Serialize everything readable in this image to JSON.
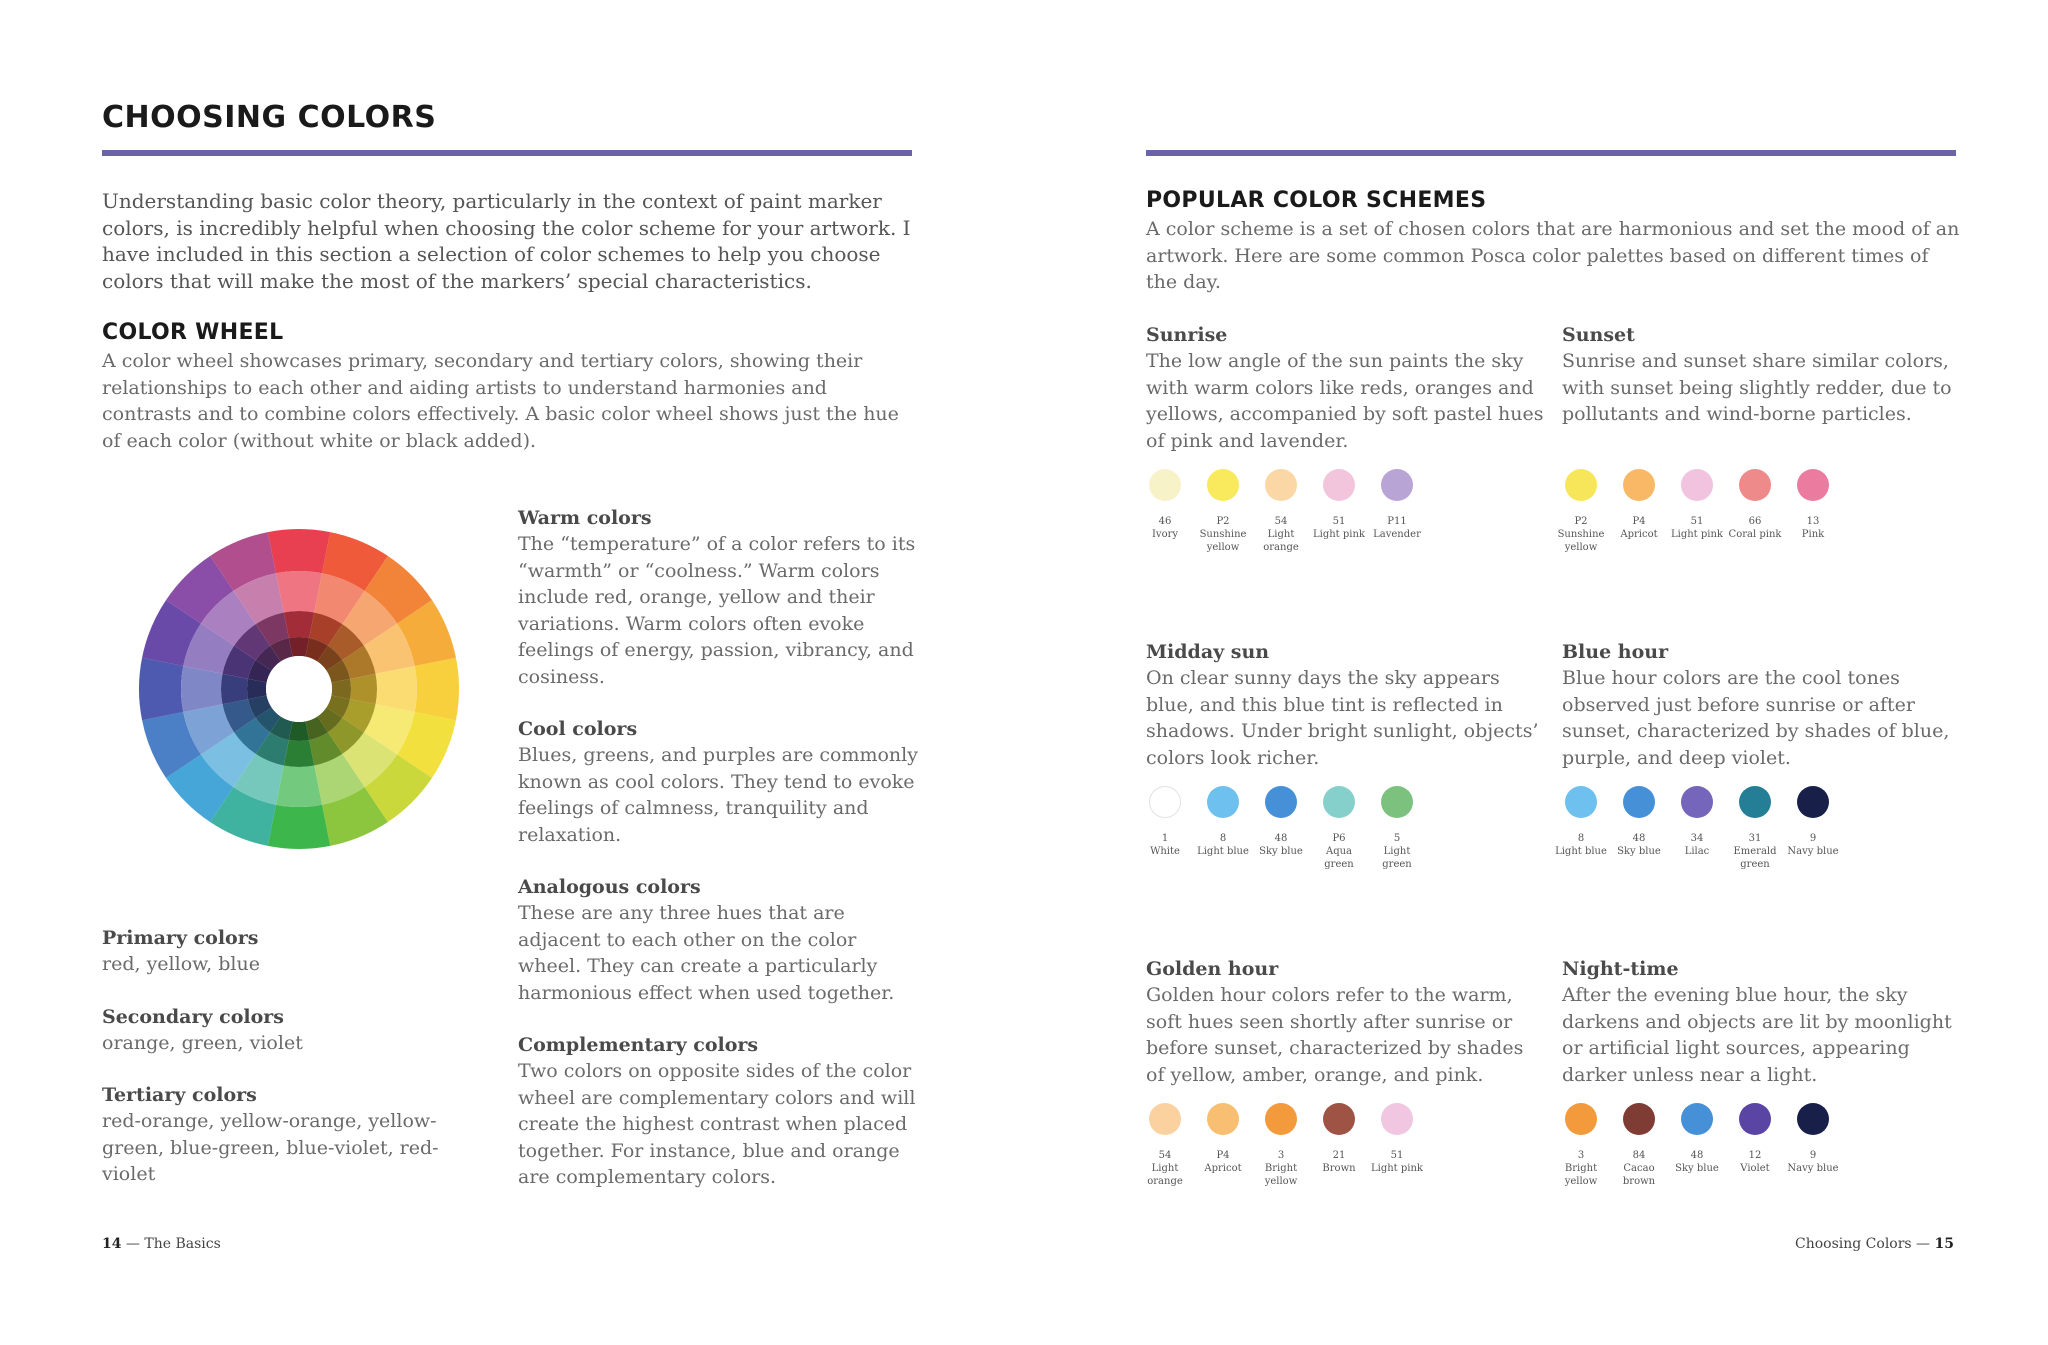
{
  "left": {
    "title": "CHOOSING COLORS",
    "intro": "Understanding basic color theory, particularly in the context of paint marker colors, is incredibly helpful when choosing the color scheme for your artwork. I have included in this section a selection of color schemes to help you choose colors that will make the most of the markers’ special characteristics.",
    "color_wheel": {
      "heading": "COLOR WHEEL",
      "text": "A color wheel showcases primary, secondary and tertiary colors, showing their relationships to each other and aiding artists to understand harmonies and contrasts and to combine colors effectively. A basic color wheel shows just the hue of each color (without white or black added)."
    },
    "color_groups": [
      {
        "heading": "Primary colors",
        "text": "red, yellow, blue"
      },
      {
        "heading": "Secondary colors",
        "text": "orange, green, violet"
      },
      {
        "heading": "Tertiary colors",
        "text": "red-orange, yellow-orange, yellow-green, blue-green, blue-violet, red-violet"
      }
    ],
    "concepts": [
      {
        "heading": "Warm colors",
        "text": "The “temperature” of a color refers to its “warmth” or “coolness.” Warm colors include red, orange, yellow and their variations. Warm colors often evoke feelings of energy, passion, vibrancy, and cosiness."
      },
      {
        "heading": "Cool colors",
        "text": "Blues, greens, and purples are commonly known as cool colors. They tend to evoke feelings of calmness, tranquility and relaxation."
      },
      {
        "heading": "Analogous colors",
        "text": "These are any three hues that are adjacent to each other on the color wheel. They can create a particularly harmonious effect when used together."
      },
      {
        "heading": "Complementary colors",
        "text": "Two colors on opposite sides of the color wheel are complementary colors and will create the highest contrast when placed together. For instance, blue and orange are complementary colors."
      }
    ],
    "footer": {
      "page": "14",
      "text": " — The Basics"
    }
  },
  "right": {
    "heading": "POPULAR COLOR SCHEMES",
    "intro": "A color scheme is a set of chosen colors that are harmonious and set the mood of an artwork. Here are some common Posca color palettes based on different times of the day.",
    "schemes": [
      {
        "title": "Sunrise",
        "text": "The low angle of the sun paints the sky with warm colors like reds, oranges and yellows, accompanied by soft pastel hues of pink and lavender.",
        "swatches": [
          {
            "num": "46",
            "name": "Ivory",
            "color": "#f7f2c8"
          },
          {
            "num": "P2",
            "name": "Sunshine yellow",
            "color": "#f8ea5c"
          },
          {
            "num": "54",
            "name": "Light orange",
            "color": "#fcd7a6"
          },
          {
            "num": "51",
            "name": "Light pink",
            "color": "#f3c5dc"
          },
          {
            "num": "P11",
            "name": "Lavender",
            "color": "#b9a4d6"
          }
        ]
      },
      {
        "title": "Sunset",
        "text": "Sunrise and sunset share similar colors, with sunset being slightly redder, due to pollutants and wind-borne particles.",
        "swatches": [
          {
            "num": "P2",
            "name": "Sunshine yellow",
            "color": "#f8e65a"
          },
          {
            "num": "P4",
            "name": "Apricot",
            "color": "#f8b866"
          },
          {
            "num": "51",
            "name": "Light pink",
            "color": "#f1c3de"
          },
          {
            "num": "66",
            "name": "Coral pink",
            "color": "#ef8a8a"
          },
          {
            "num": "13",
            "name": "Pink",
            "color": "#ec7ba0"
          }
        ]
      },
      {
        "title": "Midday sun",
        "text": "On clear sunny days the sky appears blue, and this blue tint is reflected in shadows. Under bright sunlight, objects’ colors look richer.",
        "swatches": [
          {
            "num": "1",
            "name": "White",
            "color": "#ffffff"
          },
          {
            "num": "8",
            "name": "Light blue",
            "color": "#6ec0ee"
          },
          {
            "num": "48",
            "name": "Sky blue",
            "color": "#4690d8"
          },
          {
            "num": "P6",
            "name": "Aqua green",
            "color": "#86d0cc"
          },
          {
            "num": "5",
            "name": "Light green",
            "color": "#7cc27e"
          }
        ]
      },
      {
        "title": "Blue hour",
        "text": "Blue hour colors are the cool tones observed just before sunrise or after sunset, characterized by shades of blue, purple, and deep violet.",
        "swatches": [
          {
            "num": "8",
            "name": "Light blue",
            "color": "#6ec0ee"
          },
          {
            "num": "48",
            "name": "Sky blue",
            "color": "#4690d8"
          },
          {
            "num": "34",
            "name": "Lilac",
            "color": "#7565bb"
          },
          {
            "num": "31",
            "name": "Emerald green",
            "color": "#247f96"
          },
          {
            "num": "9",
            "name": "Navy blue",
            "color": "#18204a"
          }
        ]
      },
      {
        "title": "Golden hour",
        "text": "Golden hour colors refer to the warm, soft hues seen shortly after sunrise or before sunset, characterized by shades of yellow, amber, orange, and pink.",
        "swatches": [
          {
            "num": "54",
            "name": "Light orange",
            "color": "#fbd1a0"
          },
          {
            "num": "P4",
            "name": "Apricot",
            "color": "#f8bf72"
          },
          {
            "num": "3",
            "name": "Bright yellow",
            "color": "#f39a3c"
          },
          {
            "num": "21",
            "name": "Brown",
            "color": "#9e5344"
          },
          {
            "num": "51",
            "name": "Light pink",
            "color": "#f0c6e0"
          }
        ]
      },
      {
        "title": "Night-time",
        "text": "After the evening blue hour, the sky darkens and objects are lit by moonlight or artificial light sources, appearing darker unless near a light.",
        "swatches": [
          {
            "num": "3",
            "name": "Bright yellow",
            "color": "#f39a3c"
          },
          {
            "num": "84",
            "name": "Cacao brown",
            "color": "#7e3c34"
          },
          {
            "num": "48",
            "name": "Sky blue",
            "color": "#4690d8"
          },
          {
            "num": "12",
            "name": "Violet",
            "color": "#5a44a4"
          },
          {
            "num": "9",
            "name": "Navy blue",
            "color": "#18204a"
          }
        ]
      }
    ],
    "footer": {
      "text": "Choosing Colors — ",
      "page": "15"
    }
  },
  "accent_color": "#6a63a8"
}
